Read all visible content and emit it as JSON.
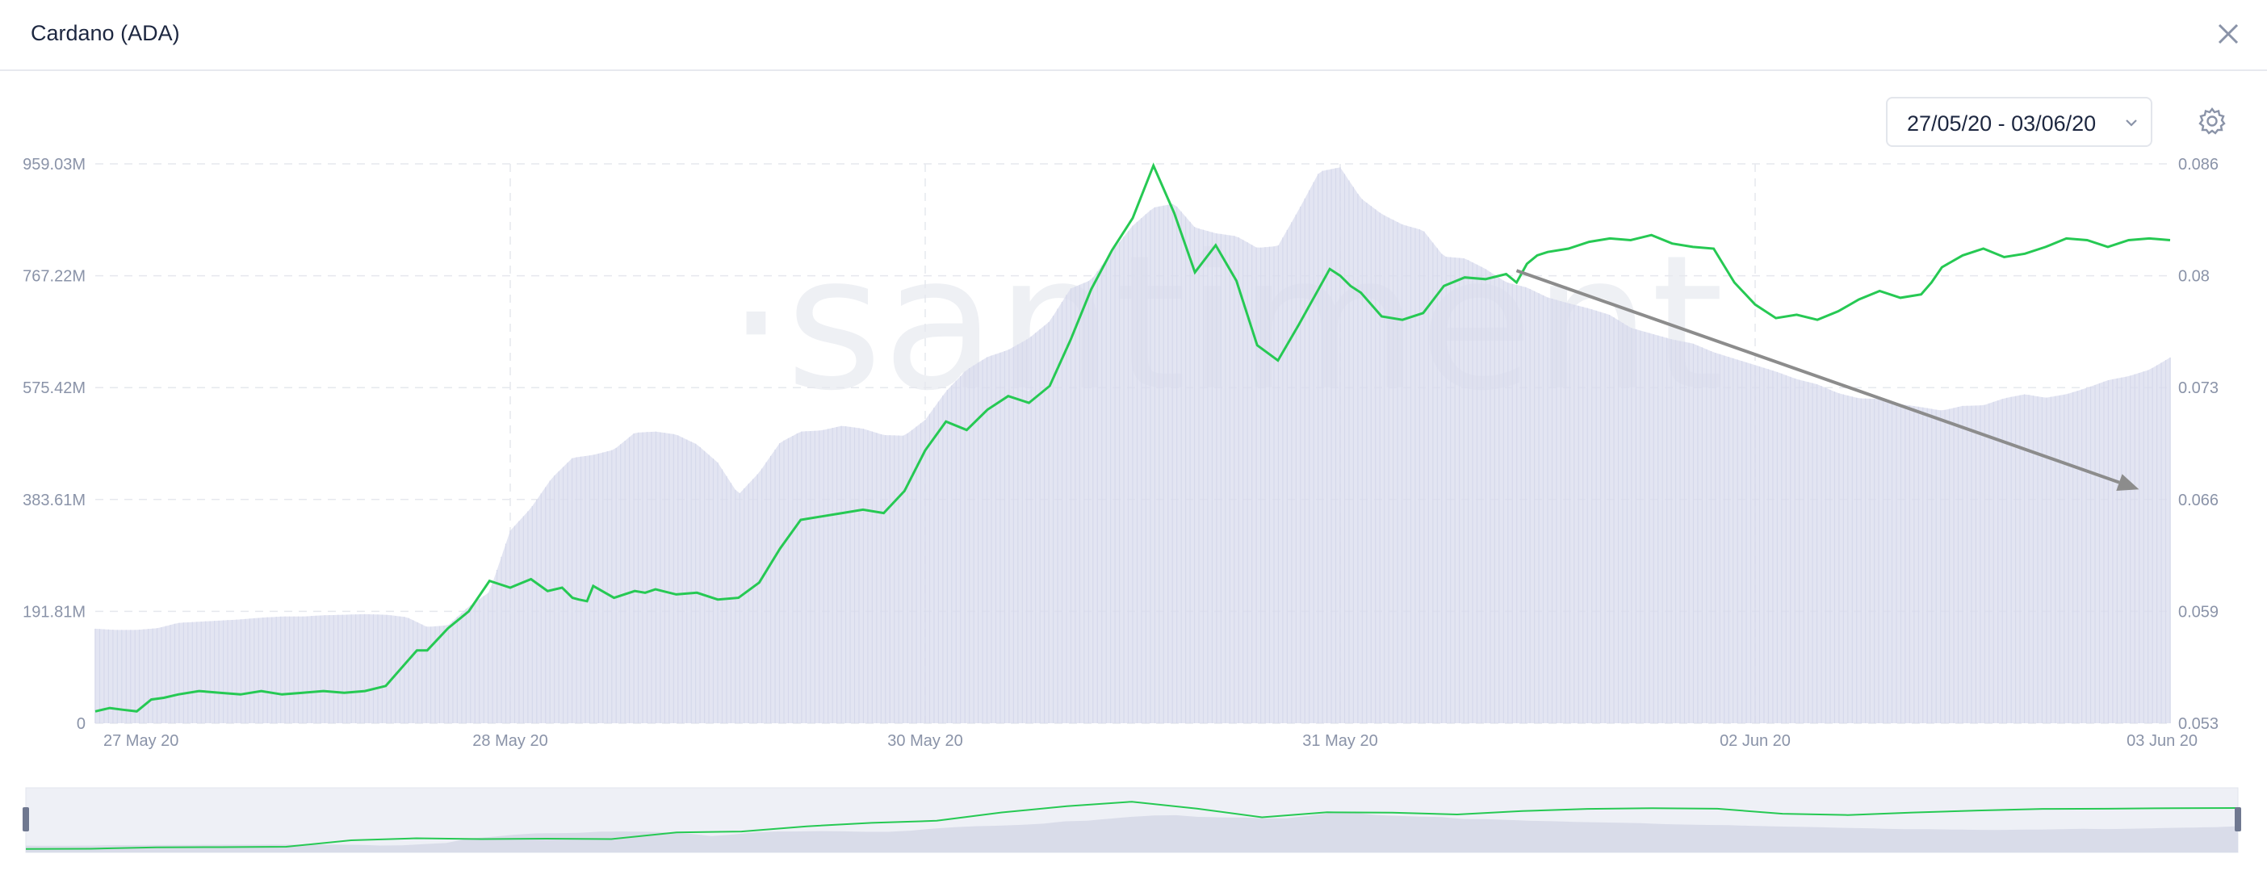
{
  "window": {
    "title": "Cardano (ADA)"
  },
  "toolbar": {
    "date_range": "27/05/20 - 03/06/20"
  },
  "watermark": "·santiment",
  "icons": {
    "close": "close-icon",
    "chevron": "chevron-down-icon",
    "settings": "gear-icon"
  },
  "colors": {
    "price_line": "#26c953",
    "volume_area": "#d9dced",
    "volume_bars": "#c9cde4",
    "trend_arrow": "#8c8c8c"
  },
  "chart_data": {
    "type": "line",
    "title": "",
    "x_ticks": [
      "27 May 20",
      "28 May 20",
      "30 May 20",
      "31 May 20",
      "02 Jun 20",
      "03 Jun 20"
    ],
    "y_left_ticks": [
      "959.03M",
      "767.22M",
      "575.42M",
      "383.61M",
      "191.81M",
      "0"
    ],
    "y_right_ticks": [
      "0.086",
      "0.08",
      "0.073",
      "0.066",
      "0.059",
      "0.053"
    ],
    "y_left_range": [
      0,
      959.03
    ],
    "y_right_range": [
      0.053,
      0.086
    ],
    "grid": true,
    "series": [
      {
        "axis": "right",
        "x": [
          0.0,
          0.7,
          1.3,
          2.0,
          2.7,
          3.3,
          4.0,
          5.0,
          6.0,
          7.0,
          8.0,
          9.0,
          10.0,
          11.0,
          12.0,
          13.0,
          14.0,
          15.5,
          16.0,
          17.0,
          18.0,
          19.0,
          20.0,
          21.0,
          21.8,
          22.5,
          23.0,
          23.3,
          23.7,
          24.0,
          25.0,
          26.0,
          26.5,
          27.0,
          28.0,
          29.0,
          30.0,
          31.0,
          32.0,
          33.0,
          34.0,
          35.0,
          36.0,
          37.0,
          38.0,
          39.0,
          40.0,
          41.0,
          42.0,
          43.0,
          44.0,
          45.0,
          46.0,
          47.0,
          48.0,
          49.0,
          50.0,
          51.0,
          52.0,
          53.0,
          54.0,
          55.0,
          56.0,
          57.0,
          58.0,
          59.0,
          59.5,
          60.0,
          60.5,
          61.0,
          62.0,
          63.0,
          64.0,
          65.0,
          66.0,
          67.0,
          68.0,
          68.5,
          69.0,
          69.5,
          70.0,
          71.0,
          72.0,
          73.0,
          74.0,
          75.0,
          76.0,
          77.0,
          78.0,
          79.0,
          80.0,
          81.0,
          82.0,
          83.0,
          84.0,
          85.0,
          86.0,
          87.0,
          88.0,
          88.5,
          89.0,
          90.0,
          91.0,
          92.0,
          93.0,
          94.0,
          95.0,
          96.0,
          97.0,
          98.0,
          99.0,
          100.0
        ],
        "values": [
          0.0537,
          0.0539,
          0.0538,
          0.0537,
          0.0544,
          0.0545,
          0.0547,
          0.0549,
          0.0548,
          0.0547,
          0.0549,
          0.0547,
          0.0548,
          0.0549,
          0.0548,
          0.0549,
          0.0552,
          0.0573,
          0.0573,
          0.0586,
          0.0596,
          0.0614,
          0.061,
          0.0615,
          0.0608,
          0.061,
          0.0604,
          0.0603,
          0.0602,
          0.0611,
          0.0604,
          0.0608,
          0.0607,
          0.0609,
          0.0606,
          0.0607,
          0.0603,
          0.0604,
          0.0613,
          0.0633,
          0.065,
          0.0652,
          0.0654,
          0.0656,
          0.0654,
          0.0667,
          0.0691,
          0.0708,
          0.0703,
          0.0715,
          0.0723,
          0.0719,
          0.0729,
          0.0756,
          0.0786,
          0.0809,
          0.0828,
          0.0859,
          0.0831,
          0.0796,
          0.0812,
          0.0791,
          0.0753,
          0.0744,
          0.0765,
          0.0787,
          0.0798,
          0.0794,
          0.0788,
          0.0784,
          0.077,
          0.0768,
          0.0772,
          0.0788,
          0.0793,
          0.0792,
          0.0795,
          0.079,
          0.0801,
          0.0806,
          0.0808,
          0.081,
          0.0814,
          0.0816,
          0.0815,
          0.0818,
          0.0813,
          0.0811,
          0.081,
          0.079,
          0.0777,
          0.0769,
          0.0771,
          0.0768,
          0.0773,
          0.078,
          0.0785,
          0.0781,
          0.0783,
          0.079,
          0.0799,
          0.0806,
          0.081,
          0.0805,
          0.0807,
          0.0811,
          0.0816,
          0.0815,
          0.0811,
          0.0815,
          0.0816,
          0.0815
        ]
      },
      {
        "axis": "left",
        "x": [
          0.0,
          1.0,
          2.0,
          3.0,
          4.0,
          5.0,
          6.0,
          7.0,
          8.0,
          9.0,
          10.0,
          11.0,
          12.0,
          13.0,
          14.0,
          15.0,
          16.0,
          17.0,
          18.0,
          19.0,
          20.0,
          21.0,
          22.0,
          23.0,
          24.0,
          25.0,
          26.0,
          27.0,
          28.0,
          29.0,
          30.0,
          31.0,
          32.0,
          33.0,
          34.0,
          35.0,
          36.0,
          37.0,
          38.0,
          39.0,
          40.0,
          41.0,
          42.0,
          43.0,
          44.0,
          45.0,
          46.0,
          47.0,
          48.0,
          49.0,
          50.0,
          51.0,
          52.0,
          53.0,
          54.0,
          55.0,
          56.0,
          57.0,
          58.0,
          59.0,
          60.0,
          61.0,
          62.0,
          63.0,
          64.0,
          65.0,
          66.0,
          67.0,
          68.0,
          69.0,
          70.0,
          71.0,
          72.0,
          73.0,
          74.0,
          75.0,
          76.0,
          77.0,
          78.0,
          79.0,
          80.0,
          81.0,
          82.0,
          83.0,
          84.0,
          85.0,
          86.0,
          87.0,
          88.0,
          89.0,
          90.0,
          91.0,
          92.0,
          93.0,
          94.0,
          95.0,
          96.0,
          97.0,
          98.0,
          99.0,
          100.0
        ],
        "values": [
          162,
          160,
          160,
          163,
          172,
          174,
          176,
          178,
          181,
          183,
          183,
          185,
          186,
          187,
          186,
          182,
          165,
          168,
          200,
          225,
          330,
          369,
          420,
          455,
          460,
          469,
          498,
          500,
          495,
          478,
          447,
          392,
          430,
          481,
          500,
          502,
          510,
          505,
          494,
          493,
          520,
          569,
          606,
          628,
          640,
          660,
          689,
          745,
          760,
          809,
          853,
          884,
          891,
          850,
          840,
          835,
          815,
          818,
          880,
          946,
          953,
          900,
          873,
          855,
          845,
          800,
          797,
          779,
          756,
          747,
          730,
          720,
          711,
          700,
          678,
          668,
          658,
          651,
          636,
          625,
          614,
          603,
          590,
          581,
          566,
          557,
          556,
          547,
          542,
          536,
          544,
          545,
          557,
          564,
          558,
          564,
          575,
          588,
          595,
          606,
          627
        ]
      }
    ],
    "annotations": [
      {
        "type": "arrow",
        "x1": 68.5,
        "y1": 0.0797,
        "x2": 98.5,
        "y2": 0.0668
      }
    ]
  },
  "navigator": {
    "price_series": [
      0.0537,
      0.0538,
      0.0548,
      0.0549,
      0.0552,
      0.0596,
      0.061,
      0.0604,
      0.0607,
      0.0604,
      0.065,
      0.0656,
      0.0691,
      0.0715,
      0.0729,
      0.0786,
      0.0828,
      0.0859,
      0.0812,
      0.0753,
      0.0787,
      0.0784,
      0.0772,
      0.0795,
      0.081,
      0.0815,
      0.0811,
      0.0777,
      0.0768,
      0.0785,
      0.0799,
      0.081,
      0.0811,
      0.0815,
      0.0816
    ]
  }
}
